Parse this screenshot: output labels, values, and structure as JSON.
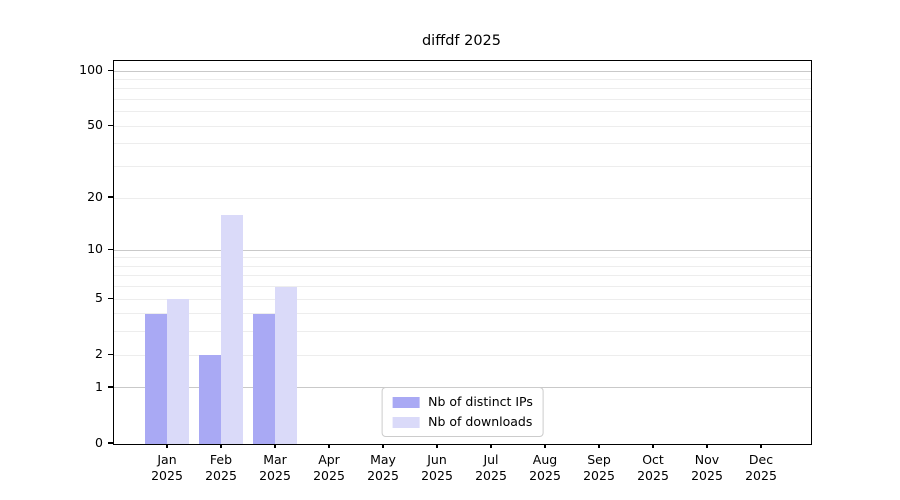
{
  "chart_data": {
    "type": "bar",
    "title": "diffdf 2025",
    "categories": [
      "Jan",
      "Feb",
      "Mar",
      "Apr",
      "May",
      "Jun",
      "Jul",
      "Aug",
      "Sep",
      "Oct",
      "Nov",
      "Dec"
    ],
    "year_label": "2025",
    "series": [
      {
        "name": "Nb of distinct IPs",
        "color": "#a9a9f4",
        "values": [
          4,
          2,
          4,
          0,
          0,
          0,
          0,
          0,
          0,
          0,
          0,
          0
        ]
      },
      {
        "name": "Nb of downloads",
        "color": "#dadaf9",
        "values": [
          5,
          16,
          6,
          0,
          0,
          0,
          0,
          0,
          0,
          0,
          0,
          0
        ]
      }
    ],
    "xlabel": "",
    "ylabel": "",
    "yscale": "symlog (log1p mapping, linear near 0)",
    "yticks": [
      0,
      1,
      2,
      5,
      10,
      20,
      50,
      100
    ],
    "grid_major": [
      1,
      10,
      100
    ],
    "grid_minor": [
      2,
      3,
      4,
      5,
      6,
      7,
      8,
      9,
      20,
      30,
      40,
      50,
      60,
      70,
      80,
      90
    ],
    "ylim": [
      0,
      113.5
    ],
    "grid": true,
    "legend_position": "lower center",
    "colors": {
      "spine": "#000000",
      "major_grid": "#c9c9c9",
      "minor_grid": "#ededed",
      "background": "#ffffff",
      "text": "#000000"
    }
  }
}
